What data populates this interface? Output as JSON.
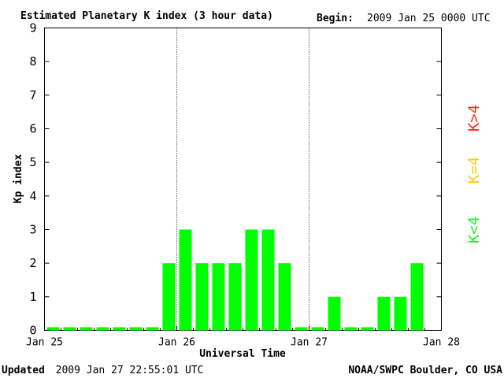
{
  "header": {
    "title": "Estimated Planetary K index (3 hour data)",
    "begin_label": "Begin:",
    "begin_value": "2009 Jan 25 0000 UTC"
  },
  "footer": {
    "updated_label": "Updated",
    "updated_value": "2009 Jan 27 22:55:01 UTC",
    "source": "NOAA/SWPC Boulder, CO USA"
  },
  "legend": [
    {
      "label": "K>4",
      "color": "#ff2a1a"
    },
    {
      "label": "K=4",
      "color": "#ffcc00"
    },
    {
      "label": "K<4",
      "color": "#22ee22"
    }
  ],
  "chart_data": {
    "type": "bar",
    "title": "Estimated Planetary K index (3 hour data)",
    "xlabel": "Universal Time",
    "ylabel": "Kp index",
    "ylim": [
      0,
      9
    ],
    "yticks": [
      0,
      1,
      2,
      3,
      4,
      5,
      6,
      7,
      8,
      9
    ],
    "xticks": [
      "Jan 25",
      "Jan 26",
      "Jan 27",
      "Jan 28"
    ],
    "day_dividers": [
      "Jan 26",
      "Jan 27"
    ],
    "bar_interval_hours": 3,
    "bar_color": "#00ff00",
    "values": [
      0,
      0,
      0,
      0,
      0,
      0,
      0,
      2,
      3,
      2,
      2,
      2,
      3,
      3,
      2,
      0,
      0,
      1,
      0,
      0,
      1,
      1,
      2
    ]
  }
}
